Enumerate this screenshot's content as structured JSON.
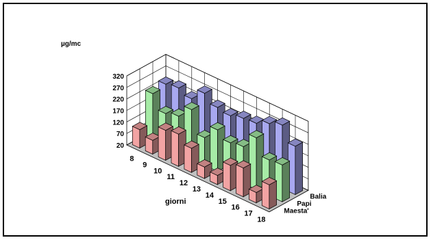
{
  "chart_data": {
    "type": "bar",
    "subtype": "3d-clustered-columns",
    "title": "",
    "ylabel": "µg/mc",
    "xlabel": "giorni",
    "categories": [
      "8",
      "9",
      "10",
      "11",
      "12",
      "13",
      "14",
      "15",
      "16",
      "17",
      "18"
    ],
    "yticks": [
      "20",
      "70",
      "120",
      "170",
      "220",
      "270",
      "320"
    ],
    "ylim": [
      20,
      320
    ],
    "grid": true,
    "series": [
      {
        "name": "Maesta'",
        "color": "#f2a3a3",
        "values": [
          100,
          80,
          150,
          160,
          125,
          70,
          60,
          130,
          145,
          65,
          125
        ]
      },
      {
        "name": "Papi",
        "color": "#a6eba6",
        "values": [
          225,
          165,
          180,
          235,
          140,
          200,
          170,
          180,
          245,
          175,
          180
        ]
      },
      {
        "name": "Balia",
        "color": "#a8a8f0",
        "values": [
          235,
          245,
          225,
          275,
          240,
          230,
          245,
          250,
          275,
          295,
          230
        ]
      }
    ]
  }
}
